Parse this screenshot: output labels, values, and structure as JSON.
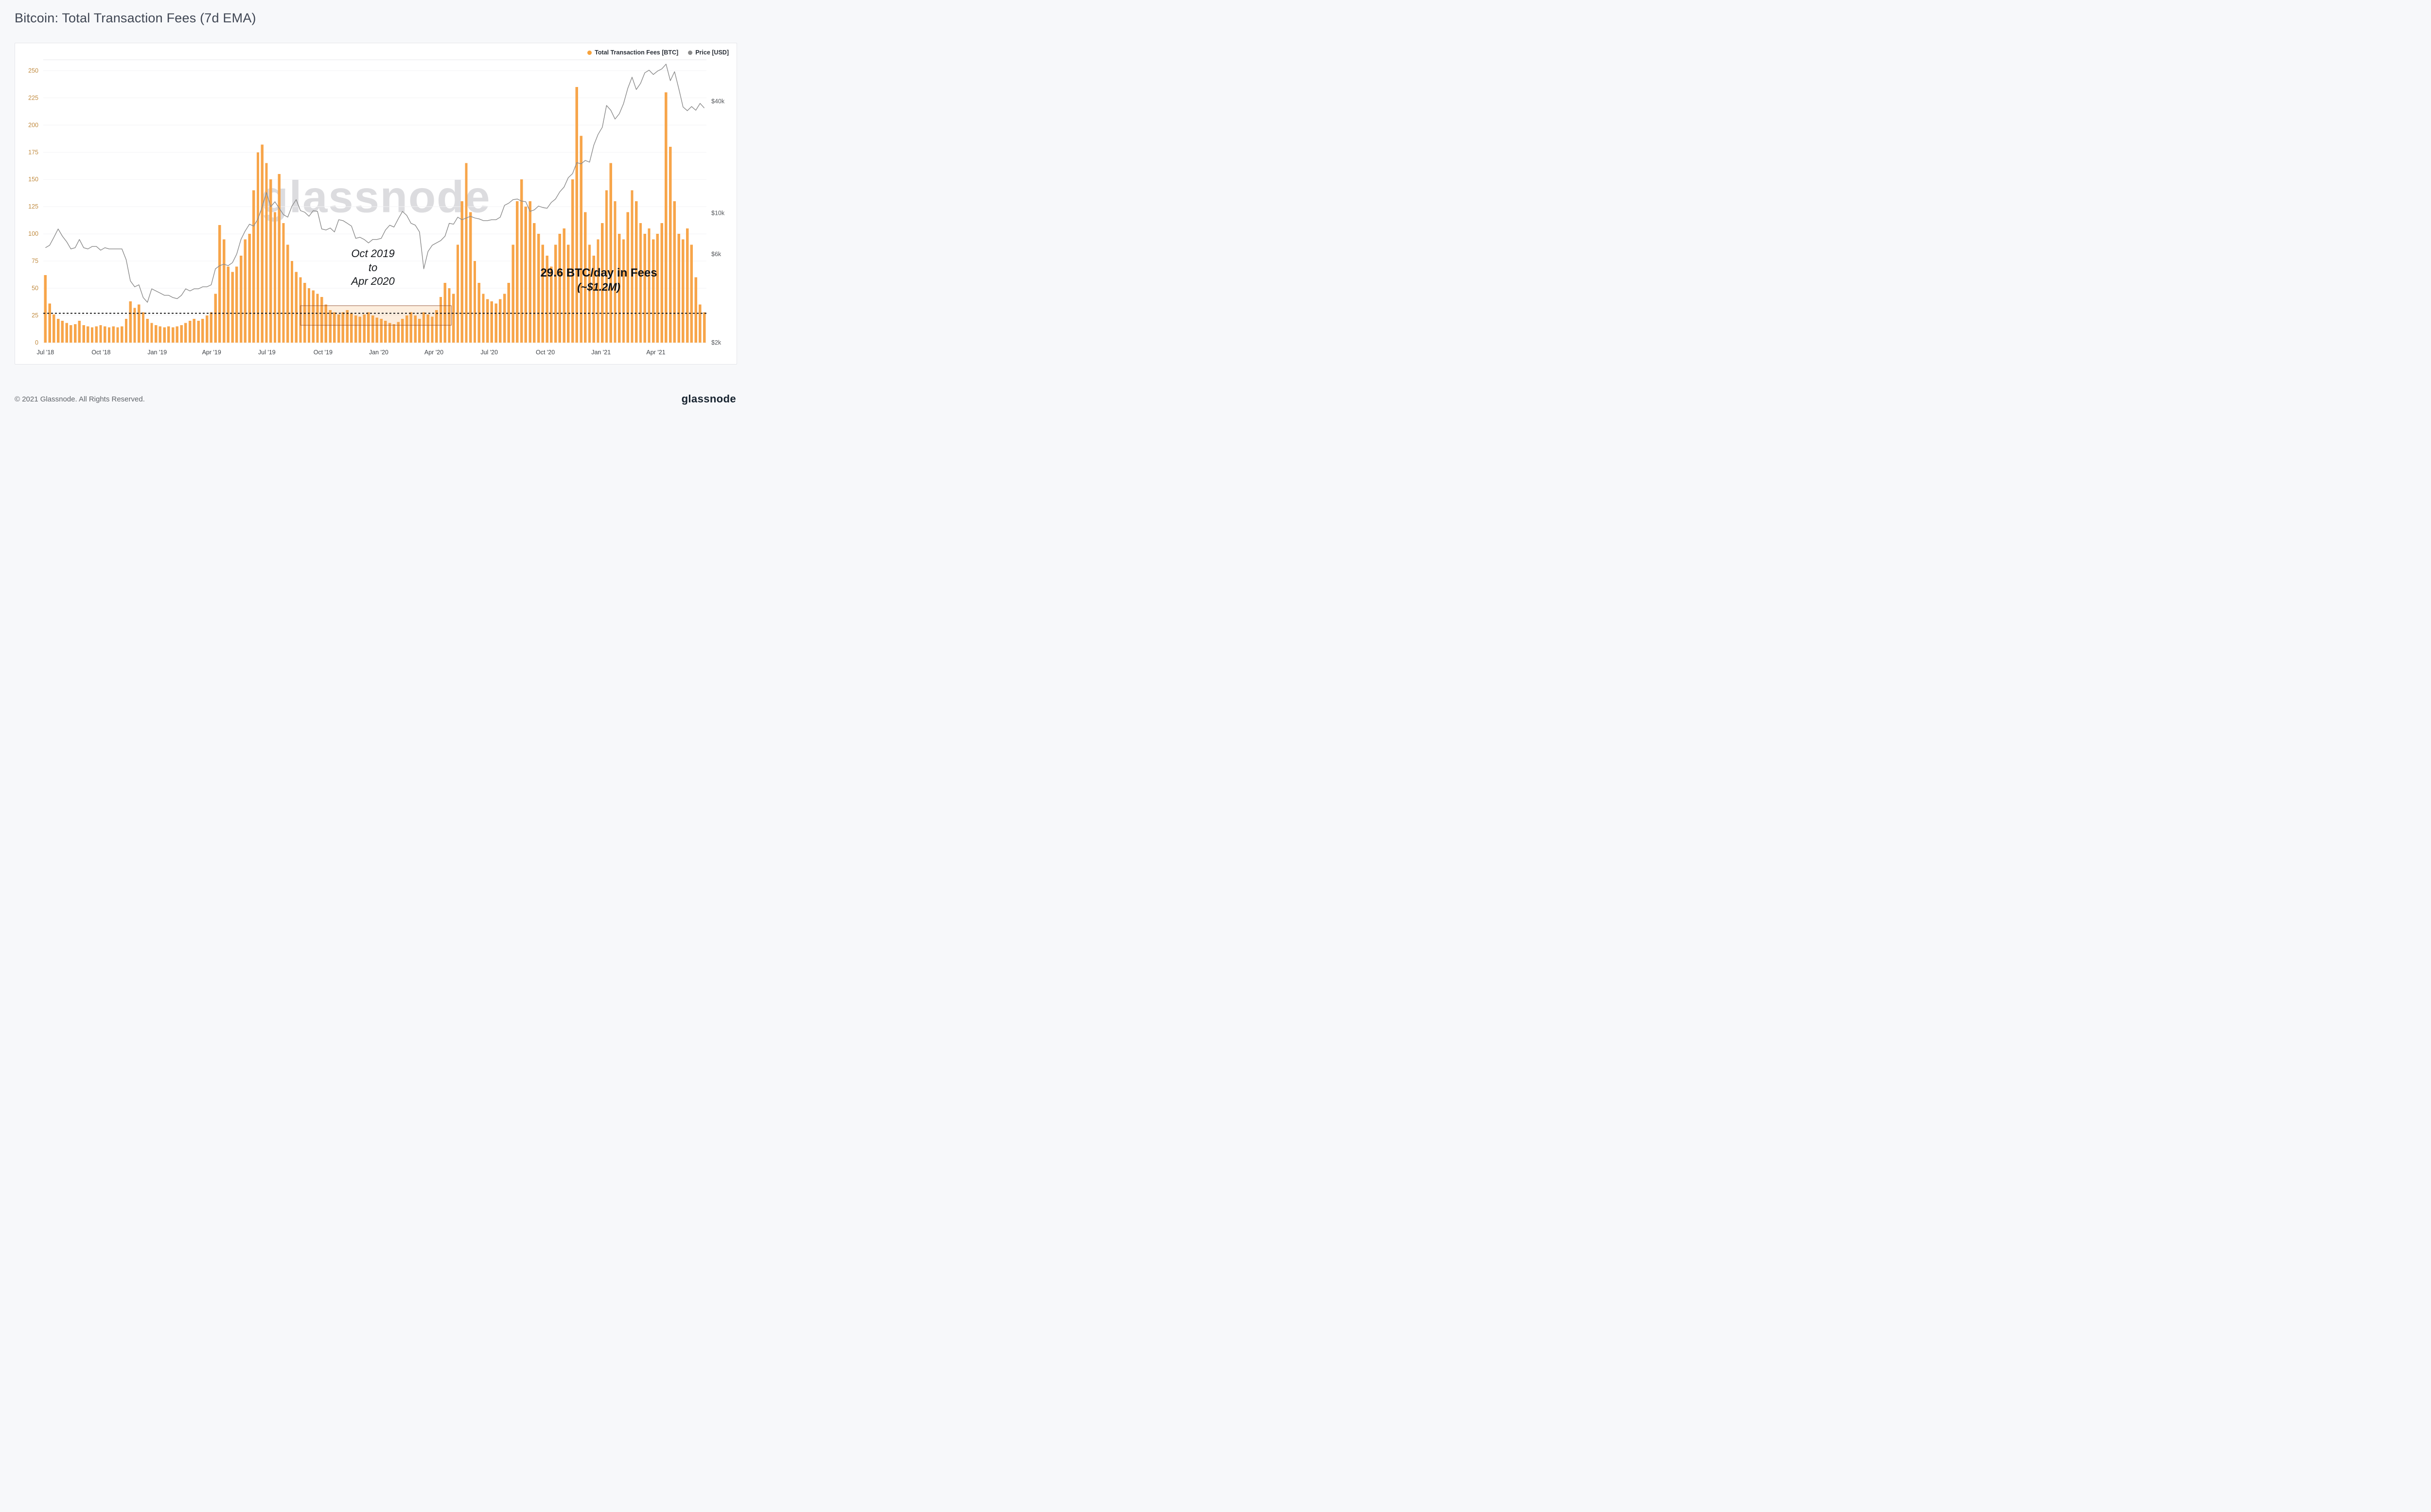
{
  "page": {
    "title": "Bitcoin: Total Transaction Fees (7d EMA)",
    "watermark": "glassnode",
    "footer": {
      "copyright": "© 2021 Glassnode. All Rights Reserved.",
      "brand": "glassnode"
    }
  },
  "legend": {
    "items": [
      {
        "label": "Total Transaction Fees [BTC]",
        "color": "#f7a23b"
      },
      {
        "label": "Price [USD]",
        "color": "#8a8a8a"
      }
    ]
  },
  "annotations": {
    "period": {
      "lines": [
        "Oct 2019",
        "to",
        "Apr 2020"
      ]
    },
    "fees": {
      "line1": "29.6 BTC/day in Fees",
      "line2": "(~$1.2M)"
    },
    "dotted_line_value": 27,
    "highlight_box": {
      "week_start": 60,
      "week_end": 95.5,
      "value_low": 16,
      "value_high": 34
    }
  },
  "chart_data": {
    "type": "bar+line",
    "title": "Bitcoin: Total Transaction Fees (7d EMA)",
    "x_unit": "weeks since 2018-07-01",
    "x_ticks": [
      {
        "week": 0,
        "label": "Jul '18"
      },
      {
        "week": 13.1,
        "label": "Oct '18"
      },
      {
        "week": 26.3,
        "label": "Jan '19"
      },
      {
        "week": 39.1,
        "label": "Apr '19"
      },
      {
        "week": 52.1,
        "label": "Jul '19"
      },
      {
        "week": 65.3,
        "label": "Oct '19"
      },
      {
        "week": 78.4,
        "label": "Jan '20"
      },
      {
        "week": 91.4,
        "label": "Apr '20"
      },
      {
        "week": 104.4,
        "label": "Jul '20"
      },
      {
        "week": 117.6,
        "label": "Oct '20"
      },
      {
        "week": 130.7,
        "label": "Jan '21"
      },
      {
        "week": 143.6,
        "label": "Apr '21"
      }
    ],
    "left_axis": {
      "label": "Total Transaction Fees [BTC]",
      "ticks": [
        0,
        25,
        50,
        75,
        100,
        125,
        150,
        175,
        200,
        225,
        250
      ],
      "range": [
        0,
        260
      ],
      "color": "#c08a3e"
    },
    "right_axis": {
      "label": "Price [USD]",
      "scale": "log",
      "ticks": [
        {
          "value": 2000,
          "label": "$2k"
        },
        {
          "value": 6000,
          "label": "$6k"
        },
        {
          "value": 10000,
          "label": "$10k"
        },
        {
          "value": 40000,
          "label": "$40k"
        }
      ],
      "range": [
        2000,
        67000
      ]
    },
    "series": [
      {
        "name": "Total Transaction Fees [BTC]",
        "type": "bar",
        "axis": "left",
        "color": "#f7a54a",
        "values": [
          62,
          36,
          26,
          22,
          20,
          18,
          16,
          17,
          20,
          16,
          15,
          14,
          15,
          16,
          15,
          14,
          15,
          14,
          15,
          22,
          38,
          32,
          35,
          28,
          22,
          18,
          16,
          15,
          14,
          15,
          14,
          15,
          16,
          18,
          20,
          22,
          20,
          22,
          25,
          28,
          45,
          108,
          95,
          70,
          65,
          70,
          80,
          95,
          100,
          140,
          175,
          182,
          165,
          150,
          120,
          155,
          110,
          90,
          75,
          65,
          60,
          55,
          50,
          48,
          45,
          42,
          35,
          30,
          28,
          26,
          28,
          30,
          27,
          25,
          24,
          26,
          28,
          25,
          23,
          22,
          20,
          18,
          17,
          19,
          22,
          25,
          28,
          25,
          22,
          28,
          26,
          24,
          30,
          42,
          55,
          50,
          45,
          90,
          130,
          165,
          120,
          75,
          55,
          45,
          40,
          38,
          36,
          40,
          45,
          55,
          90,
          130,
          150,
          125,
          130,
          110,
          100,
          90,
          80,
          70,
          90,
          100,
          105,
          90,
          150,
          235,
          190,
          120,
          90,
          80,
          95,
          110,
          140,
          165,
          130,
          100,
          95,
          120,
          140,
          130,
          110,
          100,
          105,
          95,
          100,
          110,
          230,
          180,
          130,
          100,
          95,
          105,
          90,
          60,
          35,
          28
        ]
      },
      {
        "name": "Price [USD]",
        "type": "line",
        "axis": "right",
        "color": "#8a8a8a",
        "values": [
          6500,
          6700,
          7400,
          8200,
          7500,
          7000,
          6400,
          6500,
          7200,
          6500,
          6400,
          6600,
          6600,
          6300,
          6500,
          6400,
          6400,
          6400,
          6400,
          5600,
          4300,
          4000,
          4100,
          3500,
          3300,
          3900,
          3800,
          3700,
          3600,
          3600,
          3500,
          3450,
          3600,
          3900,
          3800,
          3900,
          3900,
          4000,
          4000,
          4100,
          5000,
          5200,
          5300,
          5200,
          5400,
          6000,
          7200,
          8000,
          8700,
          8500,
          9300,
          10800,
          12900,
          10800,
          11500,
          10600,
          9800,
          9500,
          10900,
          11800,
          10300,
          10100,
          9600,
          10300,
          10200,
          8200,
          8100,
          8300,
          7900,
          9200,
          9100,
          8800,
          8500,
          7300,
          7400,
          7200,
          6900,
          7200,
          7200,
          7300,
          8100,
          8600,
          8400,
          9300,
          10200,
          9700,
          8800,
          8600,
          7900,
          5000,
          6200,
          6700,
          6900,
          7100,
          7500,
          8800,
          8700,
          9500,
          9200,
          9400,
          9600,
          9400,
          9300,
          9100,
          9100,
          9200,
          9200,
          9500,
          11000,
          11300,
          11800,
          11900,
          11600,
          11500,
          10200,
          10400,
          10900,
          10700,
          10600,
          11400,
          11900,
          13000,
          13800,
          15500,
          16300,
          18700,
          18400,
          19200,
          18800,
          23200,
          26500,
          29000,
          38000,
          35800,
          32100,
          34300,
          38900,
          47000,
          54000,
          46300,
          50000,
          57000,
          58900,
          55800,
          58200,
          59800,
          63500,
          51700,
          57800,
          46700,
          37300,
          35600,
          37500,
          35800,
          39000,
          36800
        ]
      }
    ]
  }
}
